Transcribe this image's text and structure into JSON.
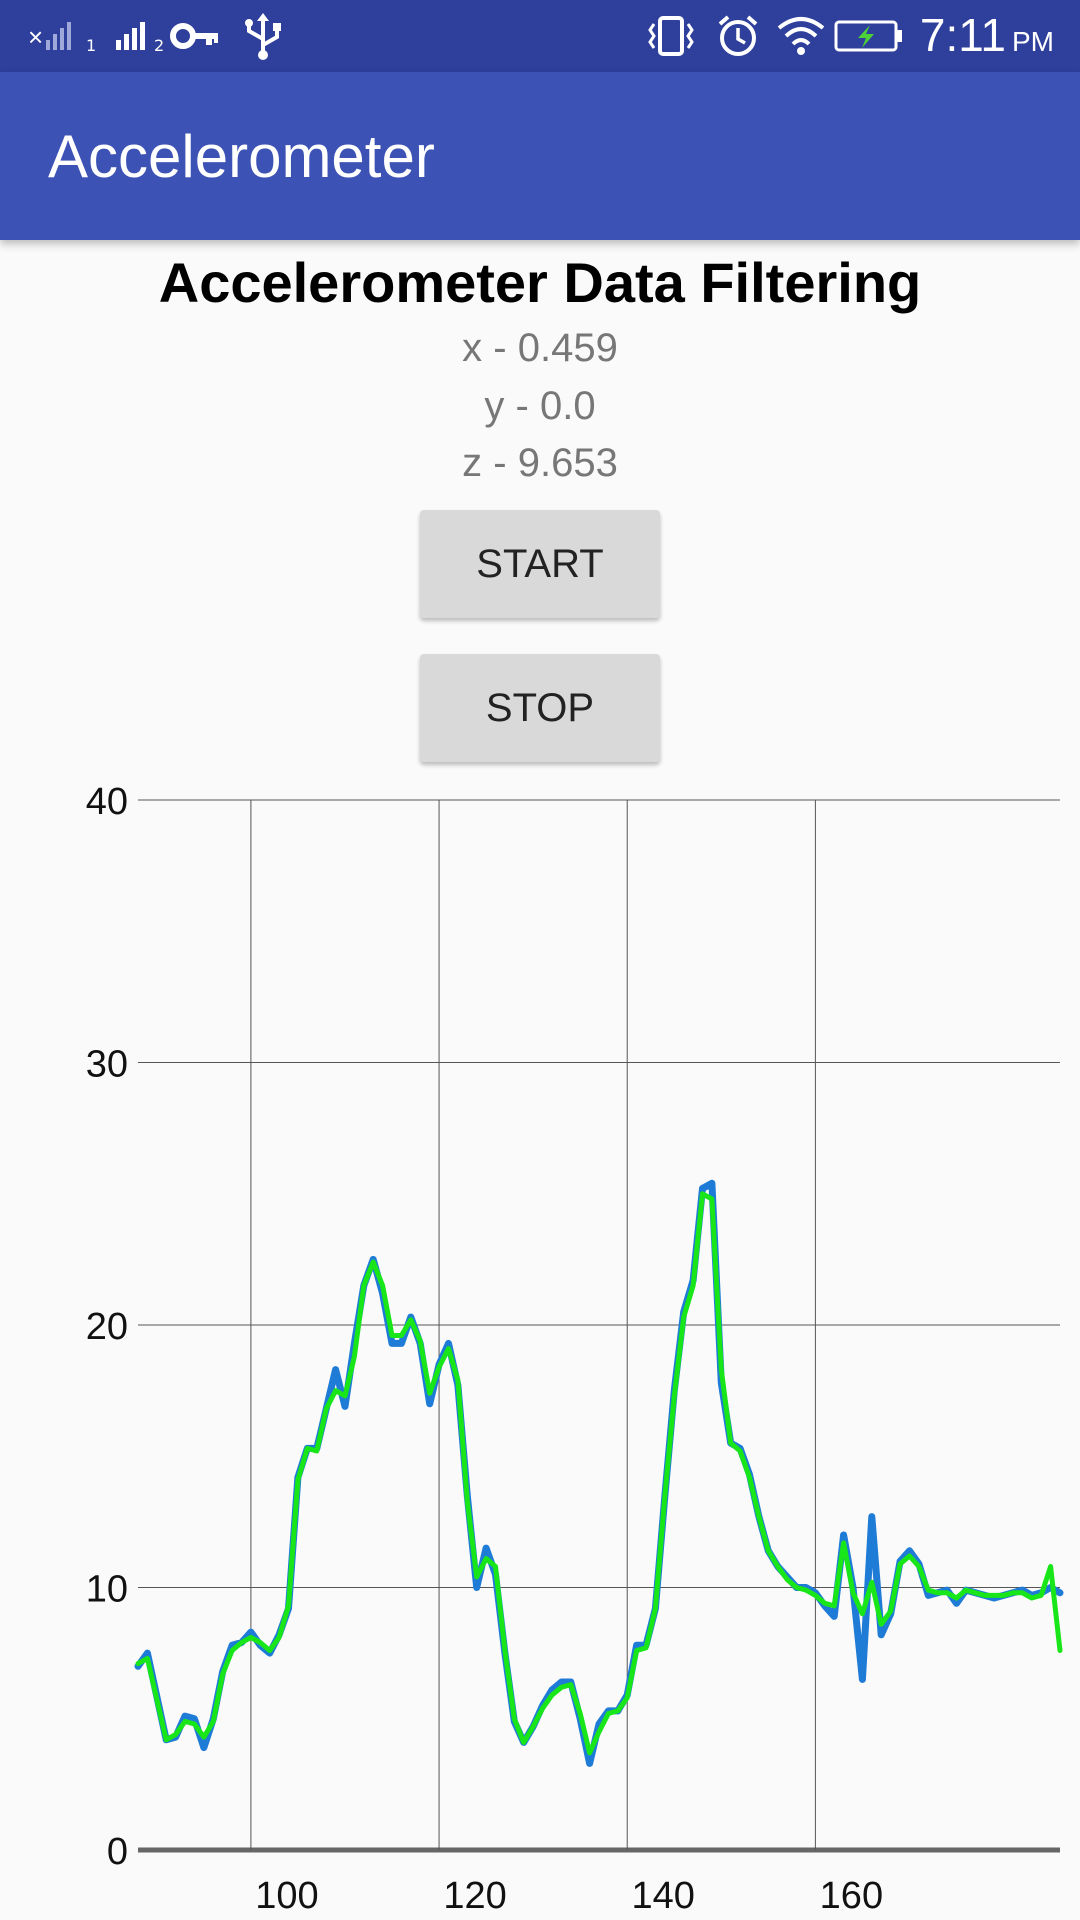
{
  "status_bar": {
    "time": "7:11",
    "ampm": "PM",
    "icons": [
      "signal-sim1-icon",
      "signal-sim2-icon",
      "vpn-key-icon",
      "usb-icon",
      "vibrate-icon",
      "alarm-icon",
      "wifi-icon",
      "battery-charging-icon"
    ],
    "sim1_label": "1",
    "sim2_label": "2"
  },
  "app_bar": {
    "title": "Accelerometer"
  },
  "main": {
    "heading": "Accelerometer Data Filtering",
    "x_reading": "x - 0.459",
    "y_reading": "y - 0.0",
    "z_reading": "z - 9.653",
    "start_label": "START",
    "stop_label": "STOP"
  },
  "colors": {
    "status_bar": "#2e3f9c",
    "app_bar": "#3d52b5",
    "raw_series": "#1e7bd6",
    "filtered_series": "#19e619"
  },
  "chart_data": {
    "type": "line",
    "title": "",
    "xlabel": "",
    "ylabel": "",
    "grid": true,
    "xlim": [
      88,
      186
    ],
    "ylim": [
      0,
      40
    ],
    "x_ticks": [
      100,
      120,
      140,
      160
    ],
    "y_ticks": [
      0,
      10,
      20,
      30,
      40
    ],
    "series": [
      {
        "values_x": [
          88,
          89,
          91,
          92,
          93,
          94,
          95,
          96,
          97,
          98,
          99,
          100,
          101,
          102,
          103,
          104,
          105,
          106,
          107,
          108,
          109,
          110,
          111,
          112,
          113,
          114,
          115,
          116,
          117,
          118,
          119,
          120,
          121,
          122,
          123,
          124,
          125,
          126,
          127,
          128,
          129,
          130,
          131,
          132,
          133,
          134,
          135,
          136,
          137,
          138,
          139,
          140,
          141,
          142,
          143,
          144,
          145,
          146,
          147,
          148,
          149,
          150,
          151,
          152,
          153,
          154,
          155,
          156,
          157,
          158,
          159,
          160,
          161,
          162,
          163,
          164,
          165,
          166,
          167,
          168,
          169,
          170,
          171,
          172,
          173,
          174,
          175,
          176,
          177,
          178,
          179,
          180,
          181,
          182,
          183,
          184,
          185,
          186
        ],
        "values_y": [
          7.0,
          7.5,
          4.2,
          4.3,
          5.1,
          5.0,
          3.9,
          5.0,
          6.8,
          7.8,
          7.9,
          8.3,
          7.8,
          7.5,
          8.2,
          9.2,
          14.2,
          15.3,
          15.3,
          16.8,
          18.3,
          16.9,
          19.3,
          21.5,
          22.5,
          21.2,
          19.3,
          19.3,
          20.3,
          19.3,
          17.0,
          18.5,
          19.3,
          17.7,
          13.5,
          10.0,
          11.5,
          10.5,
          7.5,
          4.9,
          4.1,
          4.7,
          5.5,
          6.1,
          6.4,
          6.4,
          5.0,
          3.3,
          4.8,
          5.3,
          5.3,
          5.9,
          7.8,
          7.8,
          9.2,
          13.5,
          17.5,
          20.5,
          21.7,
          25.2,
          25.4,
          17.8,
          15.5,
          15.3,
          14.3,
          12.7,
          11.4,
          10.8,
          10.4,
          10.0,
          10.0,
          9.8,
          9.3,
          8.9,
          12.0,
          10.0,
          6.5,
          12.7,
          8.2,
          9.0,
          11.0,
          11.4,
          10.9,
          9.7,
          9.8,
          9.9,
          9.4,
          9.9,
          9.8,
          9.7,
          9.6,
          9.7,
          9.8,
          9.9,
          9.7,
          9.8,
          10.0,
          9.8
        ]
      },
      {
        "values_x": [
          88,
          89,
          91,
          92,
          93,
          94,
          95,
          96,
          97,
          98,
          99,
          100,
          101,
          102,
          103,
          104,
          105,
          106,
          107,
          108,
          109,
          110,
          111,
          112,
          113,
          114,
          115,
          116,
          117,
          118,
          119,
          120,
          121,
          122,
          123,
          124,
          125,
          126,
          127,
          128,
          129,
          130,
          131,
          132,
          133,
          134,
          135,
          136,
          137,
          138,
          139,
          140,
          141,
          142,
          143,
          144,
          145,
          146,
          147,
          148,
          149,
          150,
          151,
          152,
          153,
          154,
          155,
          156,
          157,
          158,
          159,
          160,
          161,
          162,
          163,
          164,
          165,
          166,
          167,
          168,
          169,
          170,
          171,
          172,
          173,
          174,
          175,
          176,
          177,
          178,
          179,
          180,
          181,
          182,
          183,
          184,
          185,
          186
        ],
        "values_y": [
          7.1,
          7.3,
          4.2,
          4.4,
          4.9,
          4.8,
          4.3,
          4.9,
          6.7,
          7.6,
          7.9,
          8.1,
          7.9,
          7.6,
          8.1,
          9.3,
          14.1,
          15.3,
          15.2,
          16.8,
          17.5,
          17.3,
          18.8,
          21.5,
          22.4,
          21.5,
          19.6,
          19.6,
          20.2,
          19.4,
          17.4,
          18.4,
          19.1,
          17.9,
          13.3,
          10.4,
          11.1,
          10.8,
          7.6,
          5.0,
          4.1,
          4.7,
          5.4,
          5.9,
          6.2,
          6.3,
          5.2,
          3.7,
          4.5,
          5.2,
          5.3,
          5.8,
          7.6,
          7.7,
          9.2,
          13.5,
          17.3,
          20.3,
          21.5,
          25.0,
          24.8,
          18.3,
          15.5,
          15.2,
          14.2,
          12.7,
          11.4,
          10.8,
          10.3,
          10.0,
          9.9,
          9.7,
          9.4,
          9.3,
          11.7,
          9.8,
          9.0,
          10.2,
          8.6,
          9.1,
          10.9,
          11.2,
          10.8,
          9.9,
          9.8,
          9.8,
          9.6,
          9.9,
          9.8,
          9.7,
          9.7,
          9.7,
          9.8,
          9.8,
          9.6,
          9.7,
          10.8,
          7.6
        ]
      }
    ]
  }
}
